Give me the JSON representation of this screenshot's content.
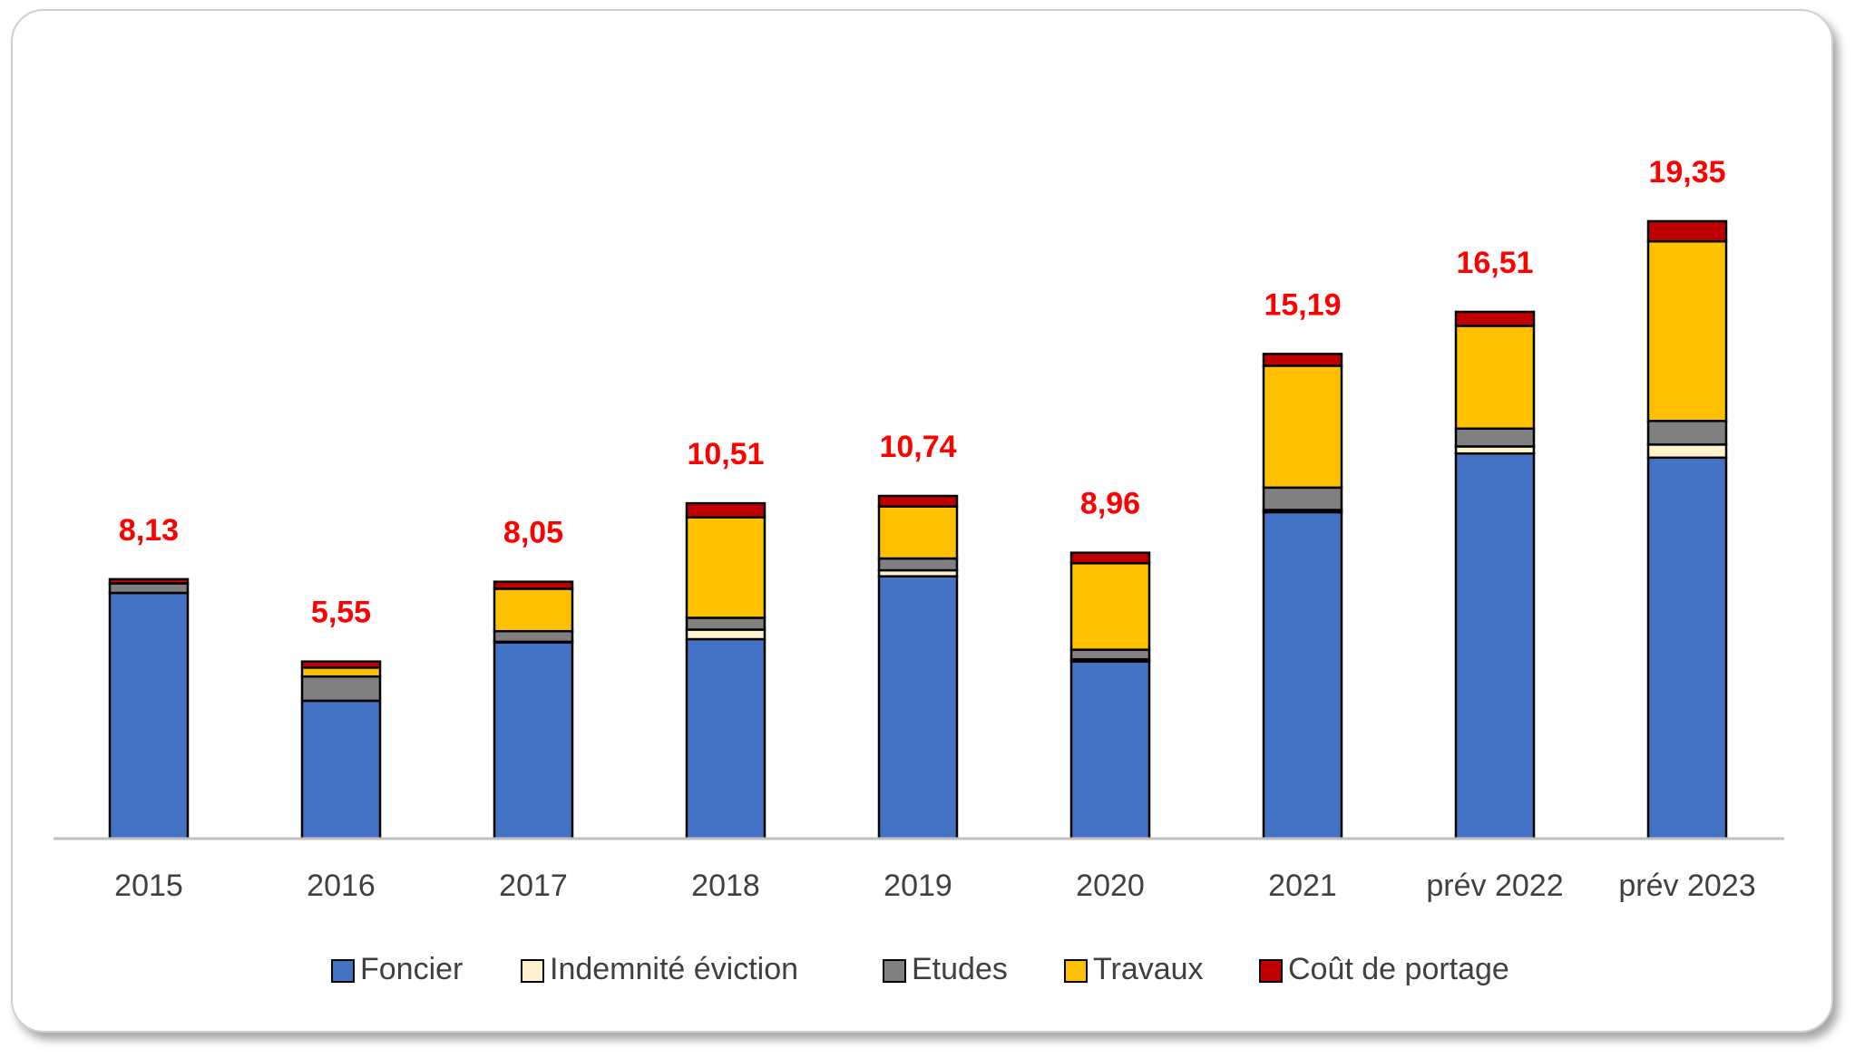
{
  "chart_data": {
    "type": "stacked-bar",
    "categories": [
      "2015",
      "2016",
      "2017",
      "2018",
      "2019",
      "2020",
      "2021",
      "prév 2022",
      "prév 2023"
    ],
    "series": [
      {
        "name": "Foncier",
        "color": "#4472C4",
        "values": [
          7.7,
          4.32,
          6.15,
          6.25,
          8.22,
          5.55,
          10.23,
          12.07,
          11.94
        ]
      },
      {
        "name": "Indemnité éviction",
        "color": "#FFF2CC",
        "values": [
          0,
          0,
          0.02,
          0.3,
          0.19,
          0.07,
          0.07,
          0.22,
          0.41
        ]
      },
      {
        "name": "Etudes",
        "color": "#808080",
        "values": [
          0.3,
          0.76,
          0.33,
          0.37,
          0.37,
          0.3,
          0.7,
          0.56,
          0.74
        ]
      },
      {
        "name": "Travaux",
        "color": "#FFC000",
        "values": [
          0,
          0.28,
          1.33,
          3.15,
          1.63,
          2.71,
          3.82,
          3.22,
          5.63
        ]
      },
      {
        "name": "Coût de portage",
        "color": "#C00000",
        "values": [
          0.13,
          0.19,
          0.22,
          0.44,
          0.33,
          0.33,
          0.37,
          0.44,
          0.63
        ]
      }
    ],
    "totals": {
      "color": "#FF0000",
      "values": [
        8.13,
        5.55,
        8.05,
        10.51,
        10.74,
        8.96,
        15.19,
        16.51,
        19.35
      ],
      "value_labels": [
        "8,13",
        "5,55",
        "8,05",
        "10,51",
        "10,74",
        "8,96",
        "15,19",
        "16,51",
        "19,35"
      ]
    },
    "legend": "bottom"
  }
}
